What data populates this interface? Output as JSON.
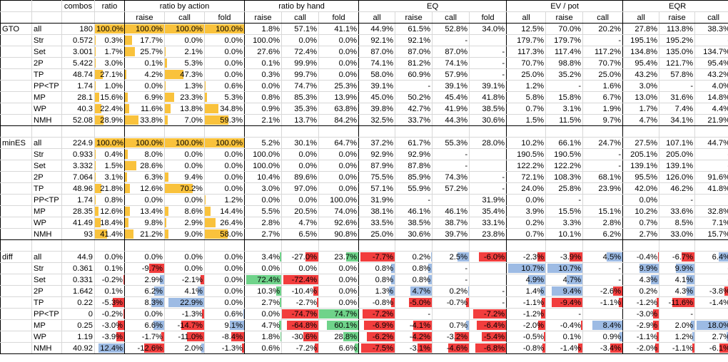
{
  "header": {
    "top": [
      "",
      "",
      "combos",
      "ratio",
      "ratio by action",
      "ratio by hand",
      "EQ",
      "EV / pot",
      "EQR"
    ],
    "sub": [
      "",
      "",
      "",
      "",
      "raise",
      "call",
      "fold",
      "raise",
      "call",
      "fold",
      "all",
      "raise",
      "call",
      "fold",
      "all",
      "raise",
      "call",
      "all",
      "raise",
      "call"
    ]
  },
  "colors": {
    "orange": "#f9c23c",
    "red": "#f23d3d",
    "blue": "#9dbbe4",
    "green": "#6fd38a",
    "border": "#d8d8d8"
  },
  "blocks": [
    {
      "name": "GTO",
      "rows": [
        [
          "all",
          "180",
          "100.0%",
          "100.0%",
          "100.0%",
          "100.0%",
          "1.8%",
          "57.1%",
          "41.1%",
          "44.9%",
          "61.5%",
          "52.8%",
          "34.0%",
          "12.5%",
          "70.0%",
          "20.2%",
          "27.8%",
          "113.8%",
          "38.3%"
        ],
        [
          "Str",
          "0.572",
          "0.3%",
          "17.7%",
          "0.0%",
          "0.0%",
          "100.0%",
          "0.0%",
          "0.0%",
          "92.1%",
          "92.1%",
          "-",
          "",
          "179.7%",
          "179.7%",
          "-",
          "195.1%",
          "195.2%",
          "-"
        ],
        [
          "Set",
          "3.001",
          "1.7%",
          "25.7%",
          "2.1%",
          "0.0%",
          "27.6%",
          "72.4%",
          "0.0%",
          "87.0%",
          "87.0%",
          "87.0%",
          "-",
          "117.3%",
          "117.4%",
          "117.2%",
          "134.8%",
          "135.0%",
          "134.7%"
        ],
        [
          "2P",
          "5.422",
          "3.0%",
          "0.1%",
          "5.3%",
          "0.0%",
          "0.1%",
          "99.9%",
          "0.0%",
          "74.1%",
          "81.2%",
          "74.1%",
          "-",
          "70.7%",
          "98.8%",
          "70.7%",
          "95.4%",
          "121.7%",
          "95.4%"
        ],
        [
          "TP",
          "48.74",
          "27.1%",
          "4.2%",
          "47.3%",
          "0.0%",
          "0.3%",
          "99.7%",
          "0.0%",
          "58.0%",
          "60.9%",
          "57.9%",
          "-",
          "25.0%",
          "35.2%",
          "25.0%",
          "43.2%",
          "57.8%",
          "43.2%"
        ],
        [
          "PP<TP",
          "1.74",
          "1.0%",
          "0.0%",
          "1.3%",
          "0.6%",
          "0.0%",
          "74.7%",
          "25.3%",
          "39.1%",
          "-",
          "39.1%",
          "39.1%",
          "1.2%",
          "-",
          "1.6%",
          "3.0%",
          "-",
          "4.0%"
        ],
        [
          "MP",
          "28.1",
          "15.6%",
          "6.9%",
          "23.3%",
          "5.3%",
          "0.8%",
          "85.3%",
          "13.9%",
          "45.0%",
          "50.2%",
          "45.4%",
          "41.8%",
          "5.8%",
          "15.8%",
          "6.7%",
          "13.0%",
          "31.6%",
          "14.8%"
        ],
        [
          "WP",
          "40.3",
          "22.4%",
          "11.6%",
          "13.8%",
          "34.8%",
          "0.9%",
          "35.3%",
          "63.8%",
          "39.8%",
          "42.7%",
          "41.9%",
          "38.5%",
          "0.7%",
          "3.1%",
          "1.9%",
          "1.7%",
          "7.4%",
          "4.4%"
        ],
        [
          "NMH",
          "52.08",
          "28.9%",
          "33.8%",
          "7.0%",
          "59.3%",
          "2.1%",
          "13.7%",
          "84.2%",
          "32.5%",
          "33.7%",
          "44.3%",
          "30.6%",
          "1.5%",
          "11.5%",
          "9.7%",
          "4.7%",
          "34.1%",
          "21.9%"
        ]
      ]
    },
    {
      "name": "minES",
      "rows": [
        [
          "all",
          "224.9",
          "100.0%",
          "100.0%",
          "100.0%",
          "100.0%",
          "5.2%",
          "30.1%",
          "64.7%",
          "37.2%",
          "61.7%",
          "55.3%",
          "28.0%",
          "10.2%",
          "66.1%",
          "24.7%",
          "27.5%",
          "107.1%",
          "44.7%"
        ],
        [
          "Str",
          "0.933",
          "0.4%",
          "8.0%",
          "0.0%",
          "0.0%",
          "100.0%",
          "0.0%",
          "0.0%",
          "92.9%",
          "92.9%",
          "-",
          "",
          "190.5%",
          "190.5%",
          "-",
          "205.1%",
          "205.0%",
          "-"
        ],
        [
          "Set",
          "3.332",
          "1.5%",
          "28.6%",
          "0.0%",
          "0.0%",
          "100.0%",
          "0.0%",
          "0.0%",
          "87.9%",
          "87.8%",
          "-",
          "",
          "122.2%",
          "122.2%",
          "-",
          "139.1%",
          "139.1%",
          "-"
        ],
        [
          "2P",
          "7.064",
          "3.1%",
          "6.3%",
          "9.4%",
          "0.0%",
          "10.4%",
          "89.6%",
          "0.0%",
          "75.5%",
          "85.9%",
          "74.3%",
          "-",
          "72.1%",
          "108.3%",
          "68.1%",
          "95.5%",
          "126.0%",
          "91.6%"
        ],
        [
          "TP",
          "48.96",
          "21.8%",
          "12.6%",
          "70.2%",
          "0.0%",
          "3.0%",
          "97.0%",
          "0.0%",
          "57.1%",
          "55.9%",
          "57.2%",
          "-",
          "24.0%",
          "25.8%",
          "23.9%",
          "42.0%",
          "46.2%",
          "41.8%"
        ],
        [
          "PP<TP",
          "1.74",
          "0.8%",
          "0.0%",
          "0.0%",
          "1.2%",
          "0.0%",
          "0.0%",
          "100.0%",
          "31.9%",
          "-",
          "",
          "31.9%",
          "0.0%",
          "-",
          "",
          "0.0%",
          "-",
          ""
        ],
        [
          "MP",
          "28.35",
          "12.6%",
          "13.4%",
          "8.6%",
          "14.4%",
          "5.5%",
          "20.5%",
          "74.0%",
          "38.1%",
          "46.1%",
          "46.1%",
          "35.4%",
          "3.9%",
          "15.5%",
          "15.1%",
          "10.2%",
          "33.6%",
          "32.8%"
        ],
        [
          "WP",
          "41.49",
          "18.4%",
          "9.8%",
          "2.9%",
          "26.4%",
          "2.8%",
          "4.7%",
          "92.6%",
          "33.5%",
          "38.5%",
          "38.7%",
          "33.1%",
          "0.2%",
          "3.3%",
          "2.8%",
          "0.7%",
          "8.5%",
          "7.1%"
        ],
        [
          "NMH",
          "93",
          "41.4%",
          "21.2%",
          "9.0%",
          "58.0%",
          "2.7%",
          "6.5%",
          "90.8%",
          "25.0%",
          "30.6%",
          "39.7%",
          "23.8%",
          "0.7%",
          "10.1%",
          "6.2%",
          "2.7%",
          "33.0%",
          "15.7%"
        ]
      ]
    },
    {
      "name": "diff",
      "rows": [
        [
          "all",
          "44.9",
          "0.0%",
          "0.0%",
          "0.0%",
          "0.0%",
          "3.4%",
          "-27.0%",
          "23.7%",
          "-7.7%",
          "0.2%",
          "2.5%",
          "-6.0%",
          "-2.3%",
          "-3.9%",
          "4.5%",
          "-0.4%",
          "-6.7%",
          "6.4%"
        ],
        [
          "Str",
          "0.361",
          "0.1%",
          "-9.7%",
          "0.0%",
          "0.0%",
          "0.0%",
          "0.0%",
          "0.0%",
          "0.8%",
          "0.8%",
          "-",
          "",
          "10.7%",
          "10.7%",
          "-",
          "9.9%",
          "9.9%",
          "-"
        ],
        [
          "Set",
          "0.331",
          "-0.2%",
          "2.9%",
          "-2.1%",
          "0.0%",
          "72.4%",
          "-72.4%",
          "0.0%",
          "0.8%",
          "0.8%",
          "-",
          "",
          "4.9%",
          "4.7%",
          "-",
          "4.3%",
          "4.1%",
          "-"
        ],
        [
          "2P",
          "1.642",
          "0.1%",
          "6.2%",
          "4.1%",
          "0.0%",
          "10.3%",
          "-10.4%",
          "0.0%",
          "1.3%",
          "4.7%",
          "0.2%",
          "-",
          "1.4%",
          "9.4%",
          "-2.6%",
          "0.2%",
          "4.3%",
          "-3.8%"
        ],
        [
          "TP",
          "0.22",
          "-5.3%",
          "8.3%",
          "22.9%",
          "0.0%",
          "2.7%",
          "-2.7%",
          "0.0%",
          "-0.8%",
          "-5.0%",
          "-0.7%",
          "-",
          "-1.1%",
          "-9.4%",
          "-1.1%",
          "-1.2%",
          "-11.6%",
          "-1.4%"
        ],
        [
          "PP<TP",
          "0",
          "-0.2%",
          "0.0%",
          "-1.3%",
          "0.6%",
          "0.0%",
          "-74.7%",
          "74.7%",
          "-7.2%",
          "-",
          "",
          "-7.2%",
          "-1.2%",
          "-",
          "",
          "-3.0%",
          "-",
          ""
        ],
        [
          "MP",
          "0.25",
          "-3.0%",
          "6.6%",
          "-14.7%",
          "9.1%",
          "4.7%",
          "-64.8%",
          "60.1%",
          "-6.9%",
          "-4.1%",
          "0.7%",
          "-6.4%",
          "-2.0%",
          "-0.4%",
          "8.4%",
          "-2.9%",
          "2.0%",
          "18.0%"
        ],
        [
          "WP",
          "1.19",
          "-3.9%",
          "-1.7%",
          "-11.0%",
          "-8.4%",
          "1.8%",
          "-30.6%",
          "28.8%",
          "-6.2%",
          "-4.2%",
          "-3.2%",
          "-5.4%",
          "-0.5%",
          "0.1%",
          "0.9%",
          "-1.1%",
          "1.2%",
          "2.7%"
        ],
        [
          "NMH",
          "40.92",
          "12.4%",
          "-12.6%",
          "2.0%",
          "-1.3%",
          "0.6%",
          "-7.2%",
          "6.6%",
          "-7.5%",
          "-3.1%",
          "-4.6%",
          "-6.8%",
          "-0.8%",
          "-1.4%",
          "-3.4%",
          "-2.0%",
          "-1.1%",
          "-6.1%"
        ]
      ]
    }
  ]
}
